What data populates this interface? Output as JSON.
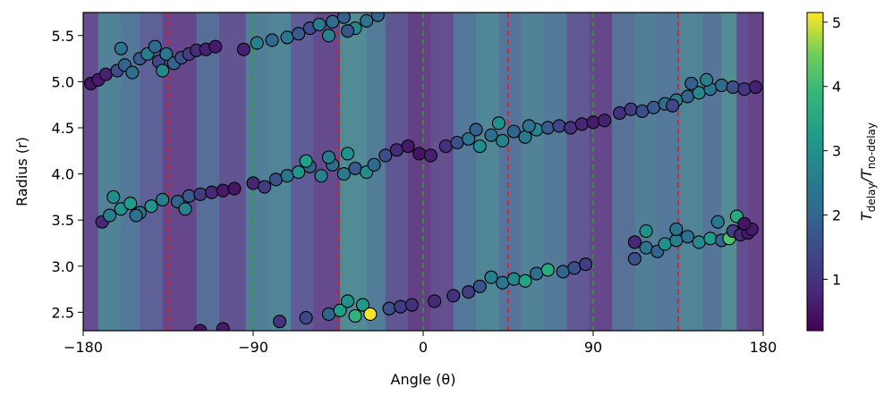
{
  "chart_data": {
    "type": "scatter",
    "title": "",
    "xlabel": "Angle (θ)",
    "ylabel": "Radius (r)",
    "xlim": [
      -180,
      180
    ],
    "ylim": [
      2.3,
      5.75
    ],
    "xticks": [
      -180,
      -90,
      0,
      90,
      180
    ],
    "xtick_labels": [
      "−180",
      "−90",
      "0",
      "90",
      "180"
    ],
    "yticks": [
      2.5,
      3.0,
      3.5,
      4.0,
      4.5,
      5.0,
      5.5
    ],
    "ytick_labels": [
      "2.5",
      "3.0",
      "3.5",
      "4.0",
      "4.5",
      "5.0",
      "5.5"
    ],
    "vlines_red": [
      -135,
      -45,
      45,
      135
    ],
    "vlines_green": [
      -90,
      0,
      90
    ],
    "colorbar": {
      "label_main": "T",
      "label_sub1": "delay",
      "label_sep": "/T",
      "label_sub2": "no-delay",
      "range": [
        0.2,
        5.15
      ],
      "ticks": [
        1,
        2,
        3,
        4,
        5
      ],
      "tick_labels": [
        "1",
        "2",
        "3",
        "4",
        "5"
      ],
      "colormap": "viridis"
    },
    "background_field": {
      "description": "translucent viridis strips over angle showing delay ratio",
      "bands": [
        {
          "x0": -180,
          "x1": -172,
          "v": 1.0
        },
        {
          "x0": -172,
          "x1": -160,
          "v": 3.0
        },
        {
          "x0": -160,
          "x1": -150,
          "v": 2.6
        },
        {
          "x0": -150,
          "x1": -138,
          "v": 1.7
        },
        {
          "x0": -138,
          "x1": -120,
          "v": 0.8
        },
        {
          "x0": -120,
          "x1": -108,
          "v": 2.2
        },
        {
          "x0": -108,
          "x1": -94,
          "v": 1.2
        },
        {
          "x0": -94,
          "x1": -82,
          "v": 2.9
        },
        {
          "x0": -82,
          "x1": -70,
          "v": 3.1
        },
        {
          "x0": -70,
          "x1": -58,
          "v": 1.5
        },
        {
          "x0": -58,
          "x1": -44,
          "v": 0.9
        },
        {
          "x0": -44,
          "x1": -30,
          "v": 3.4
        },
        {
          "x0": -30,
          "x1": -20,
          "v": 2.8
        },
        {
          "x0": -20,
          "x1": -8,
          "v": 1.3
        },
        {
          "x0": -8,
          "x1": 4,
          "v": 0.6
        },
        {
          "x0": 4,
          "x1": 16,
          "v": 1.1
        },
        {
          "x0": 16,
          "x1": 28,
          "v": 2.6
        },
        {
          "x0": 28,
          "x1": 40,
          "v": 3.2
        },
        {
          "x0": 40,
          "x1": 52,
          "v": 2.4
        },
        {
          "x0": 52,
          "x1": 64,
          "v": 3.0
        },
        {
          "x0": 64,
          "x1": 76,
          "v": 2.7
        },
        {
          "x0": 76,
          "x1": 88,
          "v": 1.4
        },
        {
          "x0": 88,
          "x1": 100,
          "v": 0.8
        },
        {
          "x0": 100,
          "x1": 112,
          "v": 2.3
        },
        {
          "x0": 112,
          "x1": 124,
          "v": 2.9
        },
        {
          "x0": 124,
          "x1": 136,
          "v": 2.6
        },
        {
          "x0": 136,
          "x1": 148,
          "v": 3.1
        },
        {
          "x0": 148,
          "x1": 158,
          "v": 2.5
        },
        {
          "x0": 158,
          "x1": 166,
          "v": 3.5
        },
        {
          "x0": 166,
          "x1": 172,
          "v": 1.0
        },
        {
          "x0": 172,
          "x1": 180,
          "v": 0.7
        }
      ]
    },
    "points": [
      [
        -176,
        4.98,
        0.5
      ],
      [
        -172,
        5.02,
        0.6
      ],
      [
        -168,
        5.08,
        0.7
      ],
      [
        -162,
        5.12,
        1.5
      ],
      [
        -158,
        5.18,
        2.0
      ],
      [
        -154,
        5.1,
        2.2
      ],
      [
        -150,
        5.25,
        1.8
      ],
      [
        -146,
        5.3,
        2.6
      ],
      [
        -140,
        5.22,
        1.4
      ],
      [
        -136,
        5.3,
        2.4
      ],
      [
        -132,
        5.2,
        2.0
      ],
      [
        -128,
        5.26,
        1.6
      ],
      [
        -124,
        5.3,
        1.2
      ],
      [
        -120,
        5.34,
        0.9
      ],
      [
        -115,
        5.35,
        0.7
      ],
      [
        -110,
        5.38,
        0.6
      ],
      [
        -160,
        5.36,
        2.3
      ],
      [
        -142,
        5.38,
        2.1
      ],
      [
        -138,
        5.12,
        2.8
      ],
      [
        -95,
        5.35,
        0.7
      ],
      [
        -88,
        5.42,
        2.6
      ],
      [
        -80,
        5.45,
        2.1
      ],
      [
        -72,
        5.48,
        2.4
      ],
      [
        -66,
        5.52,
        1.8
      ],
      [
        -60,
        5.58,
        1.5
      ],
      [
        -55,
        5.62,
        2.5
      ],
      [
        -48,
        5.65,
        2.2
      ],
      [
        -42,
        5.7,
        1.9
      ],
      [
        -36,
        5.58,
        2.8
      ],
      [
        -30,
        5.66,
        2.3
      ],
      [
        -24,
        5.72,
        2.0
      ],
      [
        -50,
        5.5,
        2.7
      ],
      [
        -40,
        5.55,
        1.7
      ],
      [
        -170,
        3.48,
        0.8
      ],
      [
        -166,
        3.55,
        2.6
      ],
      [
        -160,
        3.62,
        3.0
      ],
      [
        -155,
        3.68,
        3.2
      ],
      [
        -150,
        3.58,
        2.4
      ],
      [
        -144,
        3.65,
        3.1
      ],
      [
        -138,
        3.72,
        2.6
      ],
      [
        -130,
        3.7,
        2.0
      ],
      [
        -124,
        3.76,
        1.8
      ],
      [
        -118,
        3.78,
        1.2
      ],
      [
        -112,
        3.8,
        0.8
      ],
      [
        -106,
        3.82,
        0.6
      ],
      [
        -100,
        3.84,
        0.5
      ],
      [
        -164,
        3.75,
        2.9
      ],
      [
        -152,
        3.55,
        2.2
      ],
      [
        -126,
        3.62,
        2.7
      ],
      [
        -90,
        3.9,
        0.8
      ],
      [
        -84,
        3.86,
        1.2
      ],
      [
        -78,
        3.94,
        1.6
      ],
      [
        -72,
        3.98,
        2.4
      ],
      [
        -66,
        4.02,
        3.1
      ],
      [
        -60,
        4.08,
        2.0
      ],
      [
        -54,
        3.98,
        2.7
      ],
      [
        -48,
        4.1,
        2.2
      ],
      [
        -42,
        4.0,
        2.5
      ],
      [
        -36,
        4.06,
        1.8
      ],
      [
        -30,
        4.02,
        2.9
      ],
      [
        -26,
        4.1,
        2.1
      ],
      [
        -20,
        4.2,
        1.5
      ],
      [
        -14,
        4.26,
        0.9
      ],
      [
        -8,
        4.3,
        0.6
      ],
      [
        -2,
        4.22,
        0.5
      ],
      [
        4,
        4.2,
        0.7
      ],
      [
        -40,
        4.22,
        3.0
      ],
      [
        -50,
        4.18,
        2.6
      ],
      [
        -62,
        4.14,
        3.3
      ],
      [
        12,
        4.3,
        1.0
      ],
      [
        18,
        4.34,
        1.6
      ],
      [
        24,
        4.38,
        2.4
      ],
      [
        30,
        4.3,
        2.9
      ],
      [
        36,
        4.42,
        2.2
      ],
      [
        42,
        4.36,
        2.7
      ],
      [
        48,
        4.46,
        2.0
      ],
      [
        54,
        4.4,
        2.5
      ],
      [
        60,
        4.48,
        2.8
      ],
      [
        66,
        4.5,
        1.8
      ],
      [
        72,
        4.52,
        1.4
      ],
      [
        78,
        4.5,
        1.0
      ],
      [
        84,
        4.54,
        0.8
      ],
      [
        90,
        4.56,
        0.6
      ],
      [
        96,
        4.58,
        0.7
      ],
      [
        40,
        4.55,
        3.0
      ],
      [
        56,
        4.52,
        2.3
      ],
      [
        28,
        4.48,
        1.9
      ],
      [
        104,
        4.66,
        1.0
      ],
      [
        110,
        4.7,
        1.2
      ],
      [
        116,
        4.68,
        1.5
      ],
      [
        122,
        4.72,
        1.8
      ],
      [
        128,
        4.76,
        2.2
      ],
      [
        134,
        4.8,
        2.5
      ],
      [
        140,
        4.84,
        2.0
      ],
      [
        146,
        4.88,
        2.8
      ],
      [
        152,
        4.92,
        2.4
      ],
      [
        158,
        4.96,
        2.1
      ],
      [
        164,
        4.94,
        1.6
      ],
      [
        170,
        4.92,
        1.1
      ],
      [
        176,
        4.94,
        0.7
      ],
      [
        150,
        5.02,
        2.6
      ],
      [
        142,
        4.98,
        1.9
      ],
      [
        132,
        4.74,
        1.4
      ],
      [
        -118,
        2.3,
        0.5
      ],
      [
        -106,
        2.32,
        0.6
      ],
      [
        -76,
        2.4,
        1.0
      ],
      [
        -62,
        2.44,
        1.4
      ],
      [
        -50,
        2.48,
        2.0
      ],
      [
        -44,
        2.52,
        3.3
      ],
      [
        -40,
        2.62,
        3.0
      ],
      [
        -36,
        2.46,
        3.8
      ],
      [
        -32,
        2.58,
        3.2
      ],
      [
        -28,
        2.48,
        5.1
      ],
      [
        -18,
        2.54,
        1.6
      ],
      [
        -12,
        2.56,
        1.2
      ],
      [
        -6,
        2.58,
        1.0
      ],
      [
        6,
        2.62,
        0.9
      ],
      [
        16,
        2.68,
        1.0
      ],
      [
        24,
        2.72,
        1.2
      ],
      [
        30,
        2.78,
        1.6
      ],
      [
        36,
        2.88,
        2.6
      ],
      [
        42,
        2.82,
        2.4
      ],
      [
        48,
        2.86,
        2.8
      ],
      [
        54,
        2.84,
        3.4
      ],
      [
        60,
        2.92,
        2.2
      ],
      [
        66,
        2.96,
        3.6
      ],
      [
        74,
        2.94,
        2.0
      ],
      [
        80,
        2.98,
        1.6
      ],
      [
        86,
        3.02,
        1.2
      ],
      [
        112,
        3.08,
        1.6
      ],
      [
        118,
        3.2,
        2.4
      ],
      [
        124,
        3.16,
        2.0
      ],
      [
        128,
        3.24,
        3.0
      ],
      [
        134,
        3.28,
        2.6
      ],
      [
        140,
        3.32,
        2.2
      ],
      [
        146,
        3.26,
        2.8
      ],
      [
        152,
        3.3,
        3.2
      ],
      [
        158,
        3.28,
        2.0
      ],
      [
        162,
        3.3,
        4.2
      ],
      [
        164,
        3.38,
        1.2
      ],
      [
        168,
        3.34,
        0.8
      ],
      [
        172,
        3.36,
        0.6
      ],
      [
        166,
        3.54,
        3.6
      ],
      [
        156,
        3.48,
        2.4
      ],
      [
        118,
        3.38,
        3.0
      ],
      [
        134,
        3.4,
        2.3
      ],
      [
        112,
        3.26,
        0.8
      ],
      [
        174,
        3.4,
        0.6
      ],
      [
        170,
        3.46,
        0.5
      ]
    ]
  }
}
